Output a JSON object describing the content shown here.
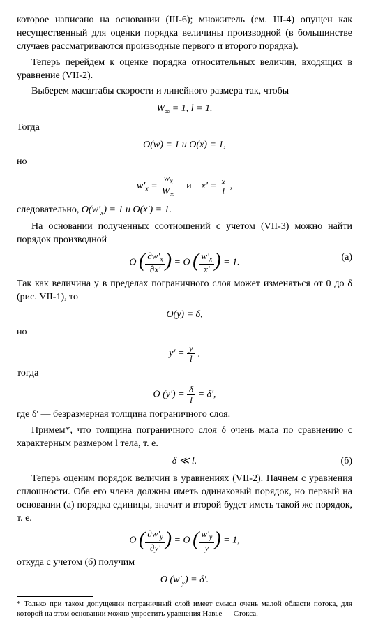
{
  "p1": "которое написано на основании (III-6); множитель (см. III-4) опущен как несущественный для оценки порядка величины производной (в большинстве случаев рассматриваются производные первого и второго порядка).",
  "p2": "Теперь перейдем к оценке порядка относительных величин, входящих в уравнение (VII-2).",
  "p3": "Выберем масштабы скорости и линейного размера так, чтобы",
  "eq1_a": "W",
  "eq1_sub": "∞",
  "eq1_b": " = 1, l = 1.",
  "togda": "Тогда",
  "eq2": "O(w) = 1 и O(x) = 1,",
  "no": "но",
  "eq3_l_num": "w",
  "eq3_l_subnum": "x",
  "eq3_l_den": "W",
  "eq3_l_subden": "∞",
  "eq3_lead": "w'",
  "eq3_leadsub": "x",
  "eq3_i": "и",
  "eq3_r_lead": "x' =",
  "eq3_r_num": "x",
  "eq3_r_den": "l",
  "p4_a": "следовательно, ",
  "p4_b": "O(w'",
  "p4_sub": "x",
  "p4_c": ") = 1  и  O(x') = 1.",
  "p5": "На основании полученных соотношений с учетом (VII-3) можно найти порядок производной",
  "eqA_num": "∂w'",
  "eqA_numsub": "x",
  "eqA_den": "∂x'",
  "eqA_r_num": "w'",
  "eqA_r_numsub": "x",
  "eqA_r_den": "x'",
  "eqA_tag": "(а)",
  "p6": "Так как величина y в пределах пограничного слоя может изменяться от 0 до δ (рис. VII-1), то",
  "eq5": "O(y) = δ,",
  "eq6_lead": "y' =",
  "eq6_num": "y",
  "eq6_den": "l",
  "togda2": "тогда",
  "eq7_lead": "O (y') =",
  "eq7_num": "δ",
  "eq7_den": "l",
  "eq7_tail": "= δ',",
  "p7": "где δ' — безразмерная толщина пограничного слоя.",
  "p8": "Примем*, что толщина пограничного слоя δ очень мала по сравнению с характерным размером l тела, т. е.",
  "eqB": "δ ≪ l.",
  "eqB_tag": "(б)",
  "p9": "Теперь оценим порядок величин в уравнениях (VII-2). Начнем с уравнения сплошности. Оба его члена должны иметь одинаковый порядок, но первый на основании (а) порядка единицы, значит и второй будет иметь такой же порядок, т. е.",
  "eq8_num": "∂w'",
  "eq8_numsub": "y",
  "eq8_den": "∂y'",
  "eq8_r_num": "w'",
  "eq8_r_numsub": "y",
  "eq8_r_den": "y",
  "p10": "откуда с учетом (б) получим",
  "eq9": "O (w'",
  "eq9_sub": "y",
  "eq9_b": ") = δ'.",
  "foot": "* Только при таком допущении пограничный слой имеет смысл очень малой области потока, для которой на этом основании можно упростить уравнения Навье — Стокса."
}
